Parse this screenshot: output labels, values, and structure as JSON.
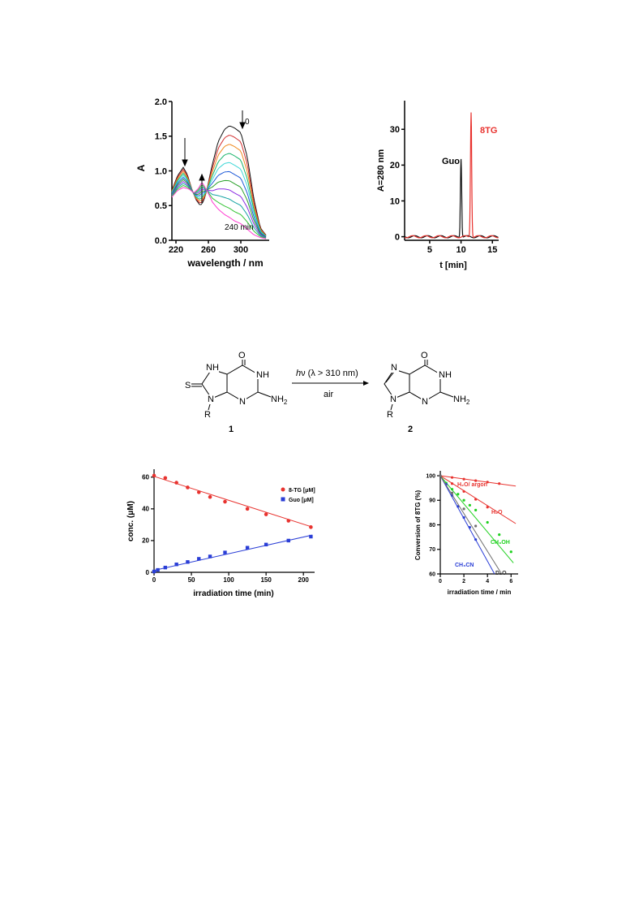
{
  "colors": {
    "red": "#e8332f",
    "blue": "#2a3ed6",
    "green": "#1fd11f",
    "black": "#111111",
    "gray": "#6e6e6e"
  },
  "spectra": {
    "chart_data": {
      "type": "line",
      "xlabel": "wavelength / nm",
      "ylabel": "A",
      "xlim": [
        215,
        335
      ],
      "ylim": [
        0,
        2.0
      ],
      "xticks": [
        "220",
        "260",
        "300"
      ],
      "yticks": [
        "0.0",
        "0.5",
        "1.0",
        "1.5",
        "2.0"
      ],
      "annotations": {
        "start": "0",
        "end": "240 min"
      },
      "series_colors": [
        "#111111",
        "#d22f2f",
        "#f08a1f",
        "#19b46b",
        "#3fd7d7",
        "#1f5bd8",
        "#2aa02a",
        "#8a2be2",
        "#16a3a3",
        "#35c435",
        "#ff3ad1"
      ],
      "series_fractions": [
        1.0,
        0.9,
        0.8,
        0.7,
        0.6,
        0.5,
        0.4,
        0.3,
        0.2,
        0.1,
        0.0
      ],
      "shape_start": [
        [
          215,
          0.72
        ],
        [
          222,
          0.93
        ],
        [
          229,
          1.05
        ],
        [
          234,
          0.95
        ],
        [
          240,
          0.72
        ],
        [
          245,
          0.58
        ],
        [
          250,
          0.5
        ],
        [
          254,
          0.56
        ],
        [
          258,
          0.72
        ],
        [
          264,
          1.05
        ],
        [
          272,
          1.42
        ],
        [
          280,
          1.6
        ],
        [
          286,
          1.65
        ],
        [
          292,
          1.62
        ],
        [
          300,
          1.55
        ],
        [
          308,
          1.2
        ],
        [
          316,
          0.6
        ],
        [
          324,
          0.18
        ],
        [
          332,
          0.06
        ]
      ],
      "shape_end": [
        [
          215,
          0.62
        ],
        [
          222,
          0.72
        ],
        [
          229,
          0.76
        ],
        [
          236,
          0.74
        ],
        [
          242,
          0.68
        ],
        [
          248,
          0.75
        ],
        [
          252,
          0.84
        ],
        [
          258,
          0.72
        ],
        [
          265,
          0.55
        ],
        [
          272,
          0.45
        ],
        [
          280,
          0.37
        ],
        [
          286,
          0.33
        ],
        [
          292,
          0.28
        ],
        [
          300,
          0.24
        ],
        [
          308,
          0.16
        ],
        [
          316,
          0.08
        ],
        [
          324,
          0.04
        ],
        [
          332,
          0.02
        ]
      ]
    }
  },
  "hplc": {
    "chart_data": {
      "type": "line",
      "xlabel": "t [min]",
      "ylabel": "A=280 nm",
      "xlim": [
        1,
        16
      ],
      "ylim": [
        -1,
        38
      ],
      "xticks": [
        "5",
        "10",
        "15"
      ],
      "yticks": [
        "0",
        "10",
        "20",
        "30"
      ],
      "series": [
        {
          "name": "Guo",
          "color": "#111111",
          "peak_x": 10.0,
          "peak_y": 22.0
        },
        {
          "name": "8TG",
          "color": "#e8332f",
          "peak_x": 11.6,
          "peak_y": 35.0
        }
      ]
    }
  },
  "scheme": {
    "compound1": "1",
    "compound2": "2",
    "conditions_top_italic": "h",
    "conditions_top_rest": "ν (λ > 310 nm)",
    "conditions_bottom": "air",
    "atoms": {
      "O": "O",
      "NH": "NH",
      "NH2_main": "NH",
      "NH2_sub": "2",
      "N": "N",
      "R": "R",
      "S": "S"
    }
  },
  "kinetics": {
    "chart_data": {
      "type": "scatter",
      "xlabel": "irradiation time (min)",
      "ylabel": "conc. (μM)",
      "xlim": [
        0,
        215
      ],
      "ylim": [
        0,
        65
      ],
      "xticks": [
        "0",
        "50",
        "100",
        "150",
        "200"
      ],
      "yticks": [
        "0",
        "20",
        "40",
        "60"
      ],
      "series": [
        {
          "name": "8-TG [μM]",
          "color": "#e8332f",
          "marker": "circle",
          "x": [
            0,
            15,
            30,
            45,
            60,
            75,
            95,
            125,
            150,
            180,
            210
          ],
          "y": [
            61,
            59.5,
            56.5,
            53.5,
            50.5,
            47.5,
            44.5,
            40,
            36.5,
            32.5,
            28.5
          ],
          "fit": [
            [
              0,
              60.5
            ],
            [
              212,
              28.5
            ]
          ]
        },
        {
          "name": "Guo [μM]",
          "color": "#2a3ed6",
          "marker": "square",
          "x": [
            0,
            5,
            15,
            30,
            45,
            60,
            75,
            95,
            125,
            150,
            180,
            210
          ],
          "y": [
            0.5,
            1.5,
            3,
            5,
            6.5,
            8.5,
            10,
            12.5,
            15.5,
            17.5,
            20,
            22.5
          ],
          "fit": [
            [
              0,
              1.2
            ],
            [
              212,
              23.5
            ]
          ]
        }
      ]
    }
  },
  "conversion": {
    "chart_data": {
      "type": "scatter",
      "xlabel": "irradiation time / min",
      "ylabel": "Conversion of 8TG (%)",
      "xlim": [
        0,
        6.6
      ],
      "ylim": [
        60,
        102
      ],
      "xticks": [
        "0",
        "2",
        "4",
        "6"
      ],
      "yticks": [
        "60",
        "70",
        "80",
        "90",
        "100"
      ],
      "labels": {
        "h2o_argon": "H₂O/ argon",
        "h2o": "H₂O",
        "ch3oh": "CH₃OH",
        "ch3cn": "CH₃CN",
        "d2o": "D₂O"
      },
      "series": [
        {
          "name": "H₂O/ argon",
          "color": "#e8332f",
          "marker": "circle",
          "x": [
            0,
            1,
            2,
            3,
            4,
            5
          ],
          "y": [
            100,
            99.3,
            98.6,
            98.0,
            97.4,
            96.8
          ],
          "fit": [
            [
              0,
              100
            ],
            [
              6.4,
              95.8
            ]
          ]
        },
        {
          "name": "H₂O",
          "color": "#e8332f",
          "marker": "circle",
          "x": [
            0,
            1,
            2,
            3,
            4
          ],
          "y": [
            100,
            96.8,
            93.6,
            90.4,
            87.2
          ],
          "fit": [
            [
              0,
              100
            ],
            [
              6.4,
              80.5
            ]
          ]
        },
        {
          "name": "CH₃OH",
          "color": "#1fd11f",
          "marker": "circle",
          "x": [
            0,
            0.5,
            1,
            1.5,
            2,
            2.5,
            3,
            4,
            5,
            6
          ],
          "y": [
            100,
            97,
            94.5,
            92.5,
            90,
            88,
            86,
            81,
            76,
            69
          ],
          "fit": [
            [
              0,
              100
            ],
            [
              6.2,
              64.5
            ]
          ]
        },
        {
          "name": "CH₃CN",
          "color": "#2a3ed6",
          "marker": "circle",
          "x": [
            0,
            0.5,
            1,
            1.5,
            2,
            2.5,
            3
          ],
          "y": [
            100,
            96.5,
            92,
            87.5,
            83,
            79,
            74
          ],
          "fit": [
            [
              0,
              100
            ],
            [
              4.6,
              60
            ]
          ]
        },
        {
          "name": "D₂O",
          "color": "#6e6e6e",
          "marker": "circle",
          "x": [
            0,
            1,
            2,
            3
          ],
          "y": [
            100,
            93,
            86.5,
            79.5
          ],
          "fit": [
            [
              0,
              100
            ],
            [
              5.2,
              60
            ]
          ]
        }
      ]
    }
  }
}
